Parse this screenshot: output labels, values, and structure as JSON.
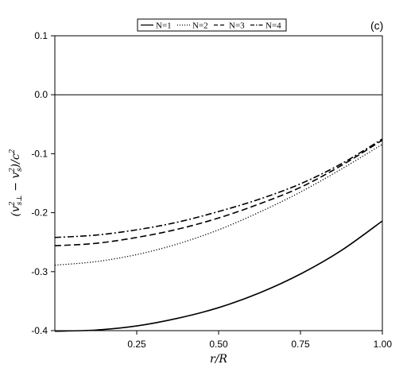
{
  "chart_data": {
    "type": "line",
    "panel_label": "(c)",
    "xlabel": "r/R",
    "ylabel_parts": [
      "(v",
      "2",
      "s⊥",
      " − v",
      "2",
      "s",
      ")/c",
      "2"
    ],
    "xlim": [
      0.0,
      1.0
    ],
    "ylim": [
      -0.4,
      0.1
    ],
    "x_ticks": [
      0.25,
      0.5,
      0.75,
      1.0
    ],
    "x_tick_labels": [
      "0.25",
      "0.50",
      "0.75",
      "1.00"
    ],
    "y_ticks": [
      0.1,
      0.0,
      -0.1,
      -0.2,
      -0.3,
      -0.4
    ],
    "y_tick_labels": [
      "0.1",
      "0.0",
      "-0.1",
      "-0.2",
      "-0.3",
      "-0.4"
    ],
    "reference_line_y": 0.0,
    "legend_position": "top-center",
    "x": [
      0.0,
      0.125,
      0.25,
      0.375,
      0.5,
      0.625,
      0.75,
      0.875,
      1.0
    ],
    "series": [
      {
        "name": "N=1",
        "dash": "solid",
        "values": [
          -0.401,
          -0.399,
          -0.392,
          -0.379,
          -0.361,
          -0.336,
          -0.304,
          -0.264,
          -0.214
        ]
      },
      {
        "name": "N=2",
        "dash": "dotted",
        "values": [
          -0.289,
          -0.283,
          -0.271,
          -0.253,
          -0.229,
          -0.199,
          -0.165,
          -0.126,
          -0.084
        ]
      },
      {
        "name": "N=3",
        "dash": "dashed",
        "values": [
          -0.256,
          -0.252,
          -0.242,
          -0.228,
          -0.209,
          -0.185,
          -0.157,
          -0.12,
          -0.077
        ]
      },
      {
        "name": "N=4",
        "dash": "dashdot",
        "values": [
          -0.242,
          -0.238,
          -0.229,
          -0.216,
          -0.198,
          -0.177,
          -0.151,
          -0.117,
          -0.075
        ]
      }
    ]
  }
}
